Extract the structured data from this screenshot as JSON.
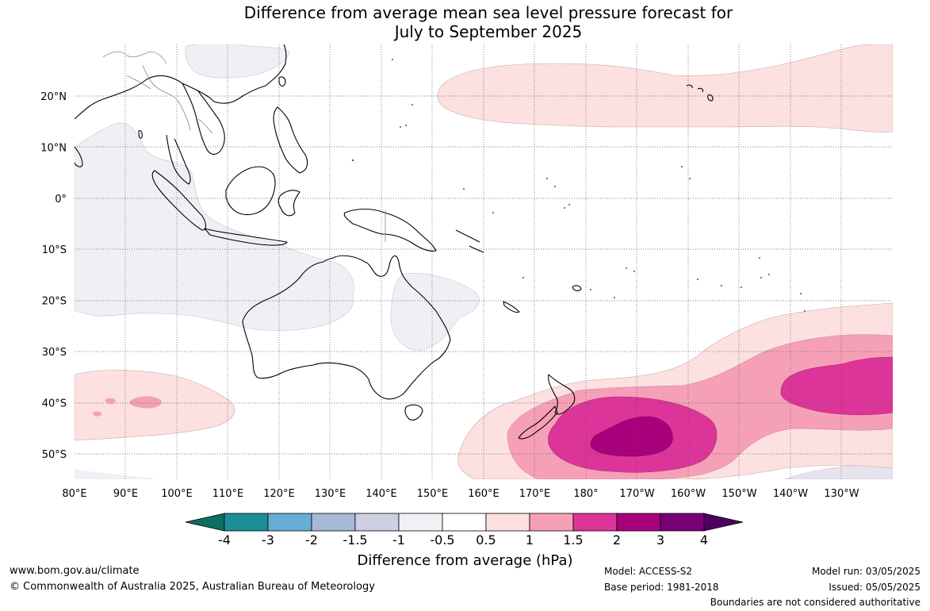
{
  "title_line1": "Difference from average mean sea level pressure forecast for",
  "title_line2": "July to September 2025",
  "lat_labels": [
    "20°N",
    "10°N",
    "0°",
    "10°S",
    "20°S",
    "30°S",
    "40°S",
    "50°S"
  ],
  "lon_labels": [
    "80°E",
    "90°E",
    "100°E",
    "110°E",
    "120°E",
    "130°E",
    "140°E",
    "150°E",
    "160°E",
    "170°E",
    "180°",
    "170°W",
    "160°W",
    "150°W",
    "140°W",
    "130°W"
  ],
  "colorbar": {
    "ticks": [
      "-4",
      "-3",
      "-2",
      "-1.5",
      "-1",
      "-0.5",
      "0.5",
      "1",
      "1.5",
      "2",
      "3",
      "4"
    ],
    "colors": [
      "#0e6e62",
      "#1a8f98",
      "#69acd4",
      "#a6b9d9",
      "#cfcfe3",
      "#f2eff5",
      "#ffffff",
      "#fde0e0",
      "#f6a0b8",
      "#dc3498",
      "#a9007b",
      "#780077",
      "#4d005e"
    ],
    "label": "Difference from average (hPa)"
  },
  "footer": {
    "website": "www.bom.gov.au/climate",
    "copyright": "© Commonwealth of Australia 2025, Australian Bureau of Meteorology",
    "model": "Model: ACCESS-S2",
    "base_period": "Base period: 1981-2018",
    "model_run": "Model run: 03/05/2025",
    "issued": "Issued: 05/05/2025",
    "disclaimer": "Boundaries are not considered authoritative"
  }
}
